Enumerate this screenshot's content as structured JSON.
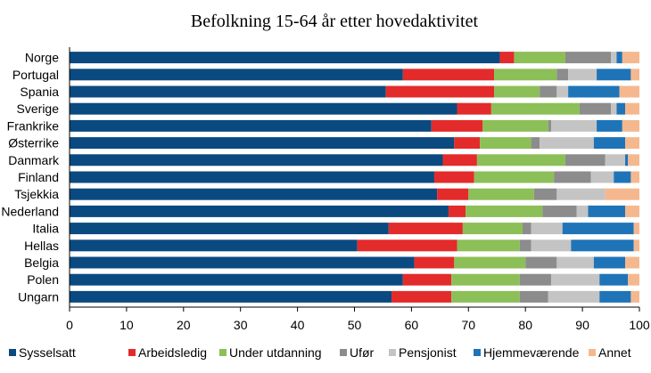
{
  "chart_data": {
    "type": "bar",
    "orientation": "horizontal",
    "stacked": true,
    "title": "Befolkning 15-64 år etter hovedaktivitet",
    "xlabel": "",
    "ylabel": "",
    "xlim": [
      0,
      100
    ],
    "xticks": [
      "0",
      "10",
      "20",
      "30",
      "40",
      "50",
      "60",
      "70",
      "80",
      "90",
      "100"
    ],
    "grid": false,
    "legend_position": "bottom",
    "categories": [
      "Norge",
      "Portugal",
      "Spania",
      "Sverige",
      "Frankrike",
      "Østerrike",
      "Danmark",
      "Finland",
      "Tsjekkia",
      "Nederland",
      "Italia",
      "Hellas",
      "Belgia",
      "Polen",
      "Ungarn"
    ],
    "series": [
      {
        "name": "Sysselsatt",
        "color": "#0b4a80",
        "values": [
          75.5,
          58.5,
          55.5,
          68.0,
          63.5,
          67.5,
          65.5,
          64.0,
          64.5,
          66.5,
          56.0,
          50.5,
          60.5,
          58.5,
          56.5
        ]
      },
      {
        "name": "Arbeidsledig",
        "color": "#e32b2b",
        "values": [
          2.5,
          16.0,
          19.0,
          6.0,
          9.0,
          4.5,
          6.0,
          7.0,
          5.5,
          3.0,
          13.0,
          17.5,
          7.0,
          8.5,
          10.5
        ]
      },
      {
        "name": "Under utdanning",
        "color": "#8cbf57",
        "values": [
          9.0,
          11.0,
          8.0,
          15.5,
          11.5,
          9.0,
          15.5,
          14.0,
          11.5,
          13.5,
          10.5,
          11.0,
          12.5,
          12.0,
          12.0
        ]
      },
      {
        "name": "Ufør",
        "color": "#8c8c8c",
        "values": [
          8.0,
          2.0,
          3.0,
          5.5,
          0.5,
          1.5,
          7.0,
          6.5,
          4.0,
          6.0,
          1.5,
          2.0,
          5.5,
          5.5,
          5.0
        ]
      },
      {
        "name": "Pensjonist",
        "color": "#c4c4c4",
        "values": [
          1.0,
          5.0,
          2.0,
          1.0,
          8.0,
          9.5,
          3.5,
          4.0,
          8.5,
          2.0,
          5.5,
          7.0,
          6.5,
          8.5,
          9.0
        ]
      },
      {
        "name": "Hjemmeværende",
        "color": "#1f74b8",
        "values": [
          1.0,
          6.0,
          9.0,
          1.5,
          4.5,
          5.5,
          0.5,
          3.0,
          0.0,
          6.5,
          12.5,
          11.0,
          5.5,
          5.0,
          5.5
        ]
      },
      {
        "name": "Annet",
        "color": "#f5b88e",
        "values": [
          3.0,
          1.5,
          3.5,
          2.5,
          3.0,
          2.5,
          2.0,
          1.5,
          6.0,
          2.5,
          1.0,
          1.0,
          2.5,
          2.0,
          1.5
        ]
      }
    ]
  }
}
